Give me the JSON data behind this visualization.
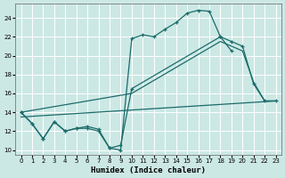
{
  "xlabel": "Humidex (Indice chaleur)",
  "bg_color": "#cce8e4",
  "line_color": "#1a6b6b",
  "grid_color": "#ffffff",
  "xlim": [
    -0.5,
    23.5
  ],
  "ylim": [
    9.5,
    25.5
  ],
  "xticks": [
    0,
    1,
    2,
    3,
    4,
    5,
    6,
    7,
    8,
    9,
    10,
    11,
    12,
    13,
    14,
    15,
    16,
    17,
    18,
    19,
    20,
    21,
    22,
    23
  ],
  "yticks": [
    10,
    12,
    14,
    16,
    18,
    20,
    22,
    24
  ],
  "curve1_x": [
    0,
    1,
    2,
    3,
    4,
    5,
    6,
    7,
    8,
    9,
    10,
    11,
    12,
    13,
    14,
    15,
    16,
    17,
    18,
    19
  ],
  "curve1_y": [
    14.0,
    12.8,
    11.2,
    13.0,
    12.0,
    12.3,
    12.3,
    12.0,
    10.2,
    10.0,
    21.8,
    22.2,
    22.0,
    22.8,
    23.5,
    24.5,
    24.8,
    24.7,
    22.0,
    20.5
  ],
  "curve2_x": [
    0,
    1,
    2,
    3,
    4,
    5,
    6,
    7,
    8,
    9,
    10,
    18,
    19,
    20,
    21,
    22,
    23
  ],
  "curve2_y": [
    14.0,
    12.8,
    11.2,
    13.0,
    12.0,
    12.3,
    12.5,
    12.2,
    10.2,
    10.5,
    16.5,
    22.0,
    21.5,
    21.0,
    17.0,
    15.2,
    15.2
  ],
  "line3_x": [
    0,
    10,
    18,
    19,
    20,
    21,
    22,
    23
  ],
  "line3_y": [
    14.0,
    16.0,
    21.5,
    21.0,
    20.5,
    17.2,
    15.2,
    15.2
  ],
  "line4_x": [
    0,
    23
  ],
  "line4_y": [
    13.5,
    15.2
  ]
}
